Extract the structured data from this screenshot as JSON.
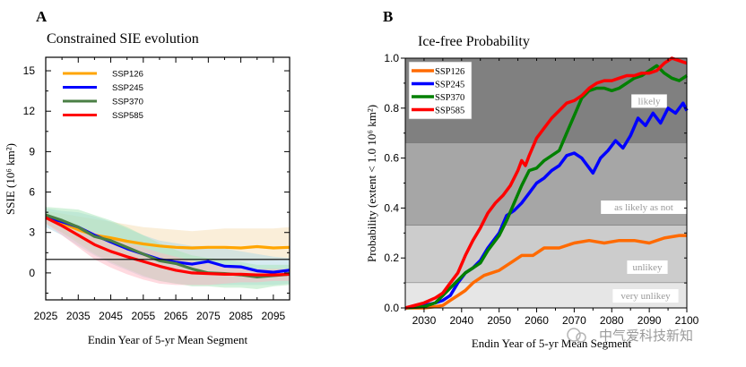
{
  "chart_data": [
    {
      "panel": "A",
      "type": "line",
      "title": "Constrained SIE evolution",
      "xlabel": "Endin Year of 5-yr Mean Segment",
      "ylabel": "SSIE (10⁶ km²)",
      "xlim": [
        2025,
        2100
      ],
      "ylim": [
        -2,
        16
      ],
      "xticks": [
        2025,
        2035,
        2045,
        2055,
        2065,
        2075,
        2085,
        2095
      ],
      "yticks": [
        0,
        3,
        6,
        9,
        12,
        15
      ],
      "reference_line": 1.0,
      "legend_position": "top-left",
      "series": [
        {
          "name": "SSP126",
          "color": "#FFA500",
          "band_color": "#F5DEB3",
          "x": [
            2025,
            2030,
            2035,
            2040,
            2045,
            2050,
            2055,
            2060,
            2065,
            2070,
            2075,
            2080,
            2085,
            2090,
            2095,
            2100
          ],
          "values": [
            4.1,
            3.7,
            3.2,
            2.8,
            2.6,
            2.35,
            2.15,
            2.0,
            1.9,
            1.85,
            1.9,
            1.9,
            1.85,
            1.95,
            1.85,
            1.9
          ],
          "upper": [
            4.6,
            4.4,
            4.2,
            4.0,
            3.8,
            3.6,
            3.4,
            3.3,
            3.2,
            3.1,
            3.2,
            3.3,
            3.3,
            3.3,
            3.3,
            3.4
          ],
          "lower": [
            3.6,
            3.0,
            2.4,
            1.8,
            1.4,
            1.2,
            1.0,
            0.9,
            0.8,
            0.7,
            0.7,
            0.8,
            0.8,
            0.9,
            0.9,
            1.0
          ]
        },
        {
          "name": "SSP245",
          "color": "#0000FF",
          "band_color": "#ADD8E6",
          "x": [
            2025,
            2030,
            2035,
            2040,
            2045,
            2050,
            2055,
            2060,
            2065,
            2070,
            2075,
            2080,
            2085,
            2090,
            2095,
            2100
          ],
          "values": [
            4.2,
            3.8,
            3.4,
            2.8,
            2.3,
            1.8,
            1.4,
            1.0,
            0.8,
            0.65,
            0.85,
            0.5,
            0.45,
            0.15,
            0.05,
            0.2
          ],
          "upper": [
            4.8,
            4.6,
            4.5,
            4.2,
            3.8,
            3.3,
            2.8,
            2.4,
            2.2,
            2.0,
            2.0,
            1.8,
            1.6,
            1.4,
            1.2,
            1.1
          ],
          "lower": [
            3.4,
            2.8,
            2.0,
            1.3,
            0.7,
            0.2,
            -0.3,
            -0.6,
            -0.8,
            -0.9,
            -0.9,
            -0.9,
            -0.9,
            -0.9,
            -0.9,
            -0.8
          ]
        },
        {
          "name": "SSP370",
          "color": "#4A7F45",
          "band_color": "#A8E6B8",
          "x": [
            2025,
            2030,
            2035,
            2040,
            2045,
            2050,
            2055,
            2060,
            2065,
            2070,
            2075,
            2080,
            2085,
            2090,
            2095,
            2100
          ],
          "values": [
            4.3,
            3.9,
            3.4,
            2.7,
            2.4,
            1.9,
            1.4,
            0.9,
            0.7,
            0.3,
            0.0,
            -0.05,
            -0.15,
            -0.3,
            -0.2,
            -0.1
          ],
          "upper": [
            4.9,
            4.8,
            4.7,
            4.3,
            3.9,
            3.4,
            2.8,
            2.2,
            1.7,
            1.3,
            1.1,
            1.0,
            0.8,
            0.6,
            0.6,
            0.6
          ],
          "lower": [
            3.7,
            3.0,
            2.2,
            1.4,
            0.8,
            0.3,
            -0.2,
            -0.6,
            -0.8,
            -1.0,
            -1.0,
            -1.1,
            -1.1,
            -1.2,
            -1.0,
            -0.9
          ]
        },
        {
          "name": "SSP585",
          "color": "#FF0000",
          "band_color": "#FFB6C1",
          "x": [
            2025,
            2030,
            2035,
            2040,
            2045,
            2050,
            2055,
            2060,
            2065,
            2070,
            2075,
            2080,
            2085,
            2090,
            2095,
            2100
          ],
          "values": [
            4.1,
            3.5,
            2.8,
            2.1,
            1.6,
            1.2,
            0.85,
            0.5,
            0.2,
            0.0,
            -0.05,
            -0.1,
            -0.1,
            -0.15,
            -0.15,
            -0.1
          ],
          "upper": [
            4.4,
            4.0,
            3.5,
            3.0,
            2.6,
            2.2,
            1.9,
            1.5,
            1.2,
            0.9,
            0.7,
            0.5,
            0.4,
            0.3,
            0.3,
            0.3
          ],
          "lower": [
            3.7,
            2.8,
            1.9,
            1.0,
            0.4,
            -0.1,
            -0.5,
            -0.8,
            -0.9,
            -0.9,
            -0.9,
            -0.8,
            -0.7,
            -0.7,
            -0.6,
            -0.6
          ]
        }
      ]
    },
    {
      "panel": "B",
      "type": "line",
      "title": "Ice-free Probability",
      "xlabel": "Endin Year of 5-yr Mean Segment",
      "ylabel": "Probability (extent < 1.0 10⁶ km²)",
      "xlim": [
        2025,
        2100
      ],
      "ylim": [
        0,
        1.0
      ],
      "xticks": [
        2030,
        2040,
        2050,
        2060,
        2070,
        2080,
        2090,
        2100
      ],
      "yticks": [
        0.0,
        0.2,
        0.4,
        0.6,
        0.8,
        1.0
      ],
      "legend_position": "top-left",
      "bands": [
        {
          "from": 0.66,
          "to": 1.0,
          "label": "likely",
          "color": "#808080"
        },
        {
          "from": 0.33,
          "to": 0.66,
          "label": "as likely as not",
          "color": "#a6a6a6"
        },
        {
          "from": 0.1,
          "to": 0.33,
          "label": "unlikey",
          "color": "#cccccc"
        },
        {
          "from": 0.0,
          "to": 0.1,
          "label": "very unlikey",
          "color": "#e6e6e6"
        }
      ],
      "series": [
        {
          "name": "SSP126",
          "color": "#FF6A00",
          "x": [
            2025,
            2030,
            2033,
            2035,
            2037,
            2039,
            2041,
            2043,
            2046,
            2050,
            2053,
            2056,
            2059,
            2062,
            2066,
            2070,
            2074,
            2078,
            2082,
            2086,
            2090,
            2094,
            2098,
            2100
          ],
          "values": [
            0.0,
            0.0,
            0.005,
            0.01,
            0.03,
            0.05,
            0.07,
            0.1,
            0.13,
            0.15,
            0.18,
            0.21,
            0.21,
            0.24,
            0.24,
            0.26,
            0.27,
            0.26,
            0.27,
            0.27,
            0.26,
            0.28,
            0.29,
            0.29
          ]
        },
        {
          "name": "SSP245",
          "color": "#0000FF",
          "x": [
            2025,
            2030,
            2033,
            2035,
            2037,
            2039,
            2041,
            2043,
            2045,
            2047,
            2050,
            2052,
            2054,
            2056,
            2058,
            2060,
            2062,
            2064,
            2066,
            2068,
            2070,
            2072,
            2075,
            2077,
            2079,
            2081,
            2083,
            2085,
            2087,
            2089,
            2091,
            2093,
            2095,
            2097,
            2099,
            2100
          ],
          "values": [
            0.0,
            0.01,
            0.02,
            0.03,
            0.05,
            0.1,
            0.14,
            0.16,
            0.19,
            0.24,
            0.3,
            0.37,
            0.39,
            0.42,
            0.46,
            0.5,
            0.52,
            0.55,
            0.57,
            0.61,
            0.62,
            0.6,
            0.54,
            0.6,
            0.63,
            0.67,
            0.64,
            0.69,
            0.76,
            0.73,
            0.78,
            0.74,
            0.8,
            0.78,
            0.82,
            0.79
          ]
        },
        {
          "name": "SSP370",
          "color": "#008000",
          "x": [
            2025,
            2030,
            2033,
            2035,
            2037,
            2039,
            2041,
            2043,
            2045,
            2047,
            2050,
            2052,
            2054,
            2056,
            2058,
            2060,
            2062,
            2064,
            2066,
            2068,
            2070,
            2072,
            2074,
            2076,
            2078,
            2080,
            2082,
            2084,
            2086,
            2088,
            2090,
            2092,
            2094,
            2096,
            2098,
            2100
          ],
          "values": [
            0.0,
            0.005,
            0.02,
            0.05,
            0.08,
            0.11,
            0.14,
            0.16,
            0.18,
            0.23,
            0.29,
            0.35,
            0.42,
            0.49,
            0.55,
            0.56,
            0.59,
            0.61,
            0.63,
            0.7,
            0.77,
            0.84,
            0.87,
            0.88,
            0.88,
            0.87,
            0.88,
            0.9,
            0.92,
            0.93,
            0.95,
            0.97,
            0.94,
            0.92,
            0.91,
            0.93
          ]
        },
        {
          "name": "SSP585",
          "color": "#FF0000",
          "x": [
            2025,
            2030,
            2033,
            2035,
            2037,
            2039,
            2041,
            2043,
            2045,
            2047,
            2049,
            2051,
            2053,
            2055,
            2056,
            2057,
            2058,
            2060,
            2062,
            2064,
            2066,
            2068,
            2070,
            2072,
            2074,
            2076,
            2078,
            2080,
            2082,
            2084,
            2086,
            2088,
            2090,
            2092,
            2094,
            2096,
            2098,
            2100
          ],
          "values": [
            0.0,
            0.02,
            0.04,
            0.06,
            0.1,
            0.14,
            0.21,
            0.27,
            0.32,
            0.38,
            0.42,
            0.45,
            0.49,
            0.55,
            0.59,
            0.57,
            0.61,
            0.68,
            0.72,
            0.76,
            0.79,
            0.82,
            0.83,
            0.85,
            0.88,
            0.9,
            0.91,
            0.91,
            0.92,
            0.93,
            0.93,
            0.94,
            0.94,
            0.95,
            0.98,
            1.0,
            0.99,
            0.98
          ]
        }
      ]
    }
  ],
  "watermark": "中气爱科技新知"
}
